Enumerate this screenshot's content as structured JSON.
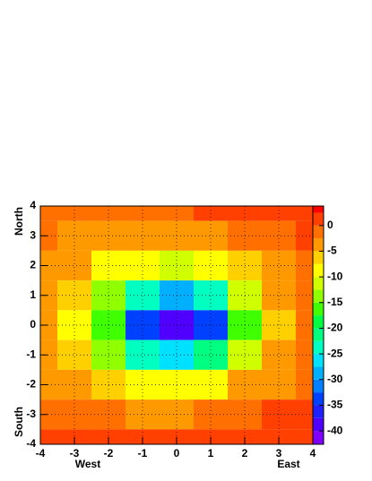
{
  "chart_data": {
    "type": "contour",
    "x": [
      -4,
      -3,
      -2,
      -1,
      0,
      1,
      2,
      3,
      4
    ],
    "y": [
      4,
      3,
      2,
      1,
      0,
      -1,
      -2,
      -3,
      -4
    ],
    "z": [
      [
        -1,
        -1,
        -1,
        -1,
        -1,
        0,
        1,
        1,
        1
      ],
      [
        -2,
        -3,
        -3,
        -4,
        -4,
        -3,
        -2,
        -1,
        0
      ],
      [
        -3,
        -5,
        -8,
        -10,
        -11,
        -9,
        -6,
        -3,
        -2
      ],
      [
        -4,
        -7,
        -14,
        -25,
        -28,
        -24,
        -12,
        -5,
        -2
      ],
      [
        -4,
        -8,
        -17,
        -33,
        -40,
        -33,
        -16,
        -6,
        -2
      ],
      [
        -4,
        -7,
        -14,
        -24,
        -27,
        -22,
        -11,
        -4,
        -1
      ],
      [
        -3,
        -4,
        -7,
        -9,
        -10,
        -8,
        -5,
        -3,
        -1
      ],
      [
        -1,
        -2,
        -2,
        -3,
        -3,
        -2,
        -1,
        0,
        1
      ],
      [
        1,
        1,
        1,
        0,
        0,
        0,
        1,
        1,
        2
      ]
    ],
    "xlim": [
      -4,
      4
    ],
    "ylim": [
      -4,
      4
    ],
    "xticks": [
      -4,
      -3,
      -2,
      -1,
      0,
      1,
      2,
      3,
      4
    ],
    "yticks": [
      -4,
      -3,
      -2,
      -1,
      0,
      1,
      2,
      3,
      4
    ],
    "x_labels": [
      "West",
      "East"
    ],
    "y_labels": [
      "North",
      "South"
    ],
    "zlim": [
      -42.6,
      3.8
    ],
    "zticks": [
      0,
      -5,
      -10,
      -15,
      -20,
      -25,
      -30,
      -35,
      -40
    ],
    "levels": [
      -40,
      -37.5,
      -35,
      -32.5,
      -30,
      -27.5,
      -25,
      -22.5,
      -20,
      -17.5,
      -15,
      -12.5,
      -10,
      -7.5,
      -5,
      -2.5,
      0,
      2.5
    ],
    "colors": [
      "#8000ff",
      "#5000ff",
      "#2020ff",
      "#0040ff",
      "#0080ff",
      "#00b0ff",
      "#00e0ff",
      "#00ffc0",
      "#00ff80",
      "#00ff40",
      "#40ff00",
      "#90ff00",
      "#d0ff00",
      "#ffff00",
      "#ffd000",
      "#ff9900",
      "#ff7000",
      "#ff4000",
      "#ff0000"
    ],
    "grid": true
  }
}
